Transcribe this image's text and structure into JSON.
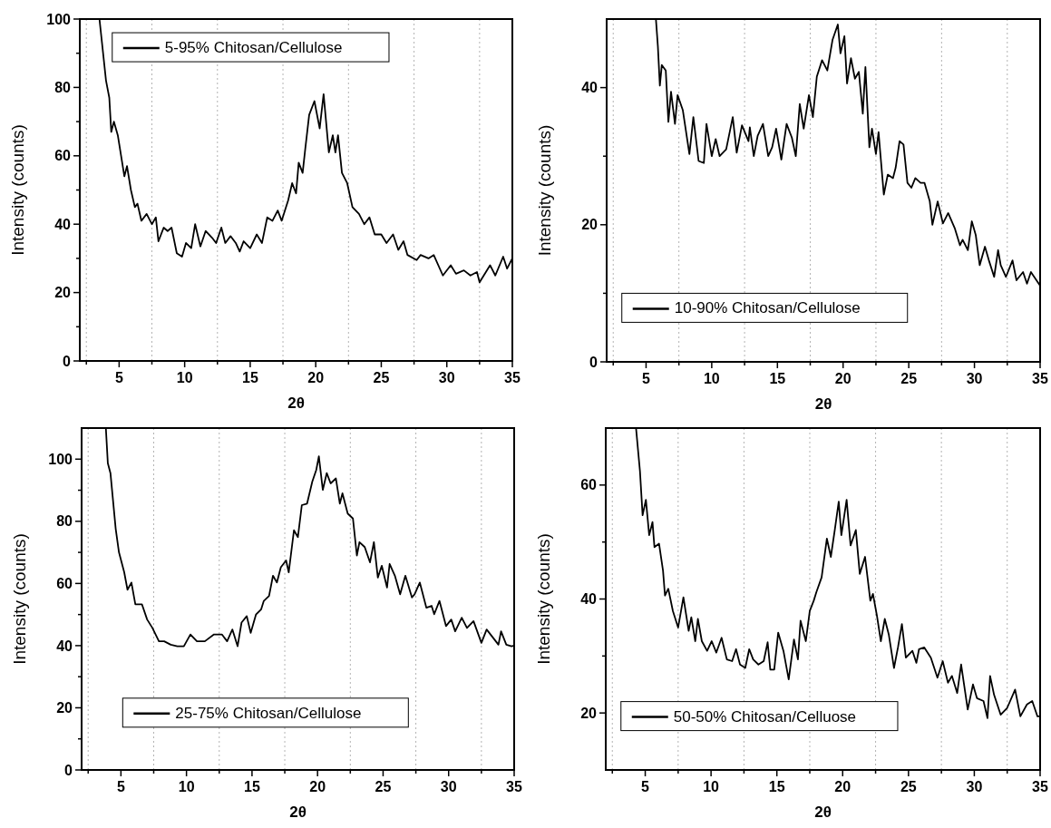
{
  "chart_data": [
    {
      "type": "line",
      "xlabel": "2θ",
      "ylabel": "Intensity (counts)",
      "xlim": [
        2,
        35
      ],
      "ylim": [
        0,
        100
      ],
      "legend": "top left",
      "xticks": [
        {
          "value": 2.5,
          "label": null
        },
        5,
        {
          "value": 7.5,
          "label": null
        },
        10,
        {
          "value": 12.5,
          "label": null
        },
        15,
        {
          "value": 17.5,
          "label": null
        },
        20,
        {
          "value": 22.5,
          "label": null
        },
        25,
        {
          "value": 27.5,
          "label": null
        },
        30,
        {
          "value": 32.5,
          "label": null
        },
        35
      ],
      "yticks": [
        0,
        {
          "value": 10,
          "label": null
        },
        20,
        {
          "value": 30,
          "label": null
        },
        40,
        {
          "value": 50,
          "label": null
        },
        60,
        {
          "value": 70,
          "label": null
        },
        80,
        {
          "value": 90,
          "label": null
        },
        100
      ],
      "ref_lines": [
        {
          "axis": "x",
          "value": 2.5,
          "color": "#808080",
          "line_style": "dotted"
        },
        {
          "axis": "x",
          "value": 7.5,
          "color": "#808080",
          "line_style": "dotted"
        },
        {
          "axis": "x",
          "value": 12.5,
          "color": "#808080",
          "line_style": "dotted"
        },
        {
          "axis": "x",
          "value": 17.5,
          "color": "#808080",
          "line_style": "dotted"
        },
        {
          "axis": "x",
          "value": 22.5,
          "color": "#808080",
          "line_style": "dotted"
        },
        {
          "axis": "x",
          "value": 27.5,
          "color": "#808080",
          "line_style": "dotted"
        },
        {
          "axis": "x",
          "value": 32.5,
          "color": "#808080",
          "line_style": "dotted"
        }
      ],
      "series": [
        {
          "name": "5-95% Chitosan/Cellulose",
          "color": "#000000",
          "x": [
            3.5,
            4.0,
            4.25,
            4.4,
            4.6,
            4.9,
            5.4,
            5.6,
            5.9,
            6.2,
            6.4,
            6.7,
            7.1,
            7.5,
            7.8,
            8.0,
            8.4,
            8.7,
            9.0,
            9.4,
            9.8,
            10.1,
            10.5,
            10.8,
            11.2,
            11.6,
            12.1,
            12.4,
            12.8,
            13.1,
            13.5,
            13.9,
            14.2,
            14.5,
            15.0,
            15.5,
            15.9,
            16.3,
            16.7,
            17.1,
            17.4,
            17.9,
            18.2,
            18.5,
            18.7,
            19.0,
            19.2,
            19.5,
            19.9,
            20.3,
            20.6,
            21.0,
            21.3,
            21.5,
            21.7,
            22.0,
            22.4,
            22.8,
            23.3,
            23.7,
            24.1,
            24.5,
            25.0,
            25.4,
            25.9,
            26.3,
            26.7,
            27.0,
            27.7,
            28.0,
            28.6,
            29.0,
            29.7,
            30.3,
            30.7,
            31.3,
            31.8,
            32.3,
            32.5,
            33.3,
            33.7,
            34.3,
            34.6,
            35
          ],
          "values": [
            100,
            82,
            77,
            67,
            70,
            66,
            54,
            57,
            50,
            45,
            46,
            41,
            43,
            40,
            42,
            35,
            39,
            38,
            39,
            31.5,
            30.5,
            34.5,
            33,
            40,
            33.5,
            38,
            36,
            34.5,
            39,
            34.5,
            36.5,
            34.5,
            32,
            35,
            33,
            37,
            34.5,
            42,
            41,
            44,
            41,
            47,
            52,
            49,
            58,
            55,
            62,
            72,
            76,
            68,
            78,
            61,
            66,
            61,
            66,
            55,
            52,
            45,
            43,
            40,
            42,
            37,
            37,
            34.5,
            37,
            32.5,
            35,
            31,
            29.5,
            31,
            30,
            31,
            25,
            28,
            25.5,
            26.5,
            25,
            26,
            23,
            28,
            25,
            30.5,
            27,
            30
          ]
        }
      ]
    },
    {
      "type": "line",
      "xlabel": "2θ",
      "ylabel": "Intensity (counts)",
      "xlim": [
        2,
        35
      ],
      "ylim": [
        0,
        50
      ],
      "legend": "bottom left",
      "xticks": [
        {
          "value": 2.5,
          "label": null
        },
        5,
        {
          "value": 7.5,
          "label": null
        },
        10,
        {
          "value": 12.5,
          "label": null
        },
        15,
        {
          "value": 17.5,
          "label": null
        },
        20,
        {
          "value": 22.5,
          "label": null
        },
        25,
        {
          "value": 27.5,
          "label": null
        },
        30,
        {
          "value": 32.5,
          "label": null
        },
        35
      ],
      "yticks": [
        0,
        {
          "value": 10,
          "label": null
        },
        20,
        {
          "value": 30,
          "label": null
        },
        40
      ],
      "ref_lines": [
        {
          "axis": "x",
          "value": 2.5,
          "color": "#808080",
          "line_style": "dotted"
        },
        {
          "axis": "x",
          "value": 7.5,
          "color": "#808080",
          "line_style": "dotted"
        },
        {
          "axis": "x",
          "value": 12.5,
          "color": "#808080",
          "line_style": "dotted"
        },
        {
          "axis": "x",
          "value": 17.5,
          "color": "#808080",
          "line_style": "dotted"
        },
        {
          "axis": "x",
          "value": 22.5,
          "color": "#808080",
          "line_style": "dotted"
        },
        {
          "axis": "x",
          "value": 27.5,
          "color": "#808080",
          "line_style": "dotted"
        },
        {
          "axis": "x",
          "value": 32.5,
          "color": "#808080",
          "line_style": "dotted"
        }
      ],
      "series": [
        {
          "name": "10-90% Chitosan/Cellulose",
          "color": "#000000",
          "x": [
            5.75,
            5.9,
            6.05,
            6.2,
            6.5,
            6.7,
            6.9,
            7.2,
            7.4,
            7.8,
            8.3,
            8.6,
            9.0,
            9.4,
            9.6,
            10.0,
            10.3,
            10.6,
            11.1,
            11.6,
            11.9,
            12.3,
            12.8,
            12.9,
            13.2,
            13.5,
            13.9,
            14.3,
            14.6,
            14.9,
            15.3,
            15.7,
            16.1,
            16.4,
            16.7,
            17.0,
            17.4,
            17.7,
            18.0,
            18.4,
            18.8,
            19.2,
            19.6,
            19.8,
            20.1,
            20.3,
            20.6,
            20.9,
            21.2,
            21.5,
            21.7,
            22.0,
            22.2,
            22.5,
            22.7,
            23.1,
            23.4,
            23.8,
            24.0,
            24.3,
            24.6,
            24.9,
            25.2,
            25.5,
            25.9,
            26.2,
            26.6,
            26.8,
            27.2,
            27.6,
            28.0,
            28.5,
            28.9,
            29.1,
            29.5,
            29.8,
            30.1,
            30.4,
            30.8,
            31.1,
            31.5,
            31.8,
            32.0,
            32.4,
            32.9,
            33.2,
            33.7,
            34.0,
            34.3,
            35
          ],
          "values": [
            50,
            46,
            40.3,
            43.3,
            42.5,
            35,
            39.4,
            34.7,
            38.9,
            36.7,
            30.3,
            35.7,
            29.3,
            29,
            34.7,
            30,
            32.5,
            30,
            31,
            35.7,
            30.5,
            34.5,
            32.2,
            34.2,
            30,
            33,
            34.7,
            30,
            31.3,
            34,
            29.5,
            34.7,
            32.7,
            30,
            37.6,
            34,
            38.9,
            35.7,
            41.6,
            44,
            42.5,
            47,
            49.2,
            45,
            47.5,
            40.6,
            44.3,
            41.3,
            42.3,
            36.2,
            43,
            31.3,
            34,
            30.3,
            33.5,
            24.4,
            27.3,
            26.8,
            28.3,
            32.2,
            31.7,
            26.1,
            25.4,
            26.8,
            26.1,
            26.1,
            23.4,
            20,
            23.4,
            20.2,
            21.7,
            19.5,
            17,
            17.8,
            16.3,
            20.5,
            18.5,
            14.1,
            16.8,
            14.8,
            12.4,
            16.3,
            14.1,
            12.4,
            14.8,
            11.9,
            13.1,
            11.4,
            13.1,
            11.1
          ]
        }
      ]
    },
    {
      "type": "line",
      "xlabel": "2θ",
      "ylabel": "Intensity (counts)",
      "xlim": [
        2,
        35
      ],
      "ylim": [
        0,
        110
      ],
      "legend": "bottom",
      "xticks": [
        {
          "value": 2.5,
          "label": null
        },
        5,
        {
          "value": 7.5,
          "label": null
        },
        10,
        {
          "value": 12.5,
          "label": null
        },
        15,
        {
          "value": 17.5,
          "label": null
        },
        20,
        {
          "value": 22.5,
          "label": null
        },
        25,
        {
          "value": 27.5,
          "label": null
        },
        30,
        {
          "value": 32.5,
          "label": null
        },
        35
      ],
      "yticks": [
        0,
        {
          "value": 10,
          "label": null
        },
        20,
        {
          "value": 30,
          "label": null
        },
        40,
        {
          "value": 50,
          "label": null
        },
        60,
        {
          "value": 70,
          "label": null
        },
        80,
        {
          "value": 90,
          "label": null
        },
        100
      ],
      "ref_lines": [
        {
          "axis": "x",
          "value": 2.5,
          "color": "#808080",
          "line_style": "dotted"
        },
        {
          "axis": "x",
          "value": 7.5,
          "color": "#808080",
          "line_style": "dotted"
        },
        {
          "axis": "x",
          "value": 12.5,
          "color": "#808080",
          "line_style": "dotted"
        },
        {
          "axis": "x",
          "value": 17.5,
          "color": "#808080",
          "line_style": "dotted"
        },
        {
          "axis": "x",
          "value": 22.5,
          "color": "#808080",
          "line_style": "dotted"
        },
        {
          "axis": "x",
          "value": 27.5,
          "color": "#808080",
          "line_style": "dotted"
        },
        {
          "axis": "x",
          "value": 32.5,
          "color": "#808080",
          "line_style": "dotted"
        }
      ],
      "series": [
        {
          "name": "25-75% Chitosan/Cellulose",
          "color": "#000000",
          "x": [
            3.85,
            4.0,
            4.2,
            4.6,
            4.85,
            5.25,
            5.5,
            5.8,
            6.1,
            6.6,
            7.0,
            7.4,
            7.9,
            8.3,
            8.8,
            9.3,
            9.8,
            10.3,
            10.8,
            11.4,
            12.1,
            12.7,
            13.1,
            13.5,
            13.9,
            14.2,
            14.6,
            14.9,
            15.3,
            15.7,
            15.9,
            16.3,
            16.6,
            16.9,
            17.2,
            17.6,
            17.8,
            18.2,
            18.5,
            18.8,
            19.2,
            19.6,
            19.9,
            20.1,
            20.4,
            20.7,
            21.0,
            21.4,
            21.7,
            21.9,
            22.3,
            22.7,
            23.0,
            23.2,
            23.6,
            24.0,
            24.3,
            24.6,
            24.9,
            25.3,
            25.5,
            25.9,
            26.3,
            26.7,
            27.2,
            27.4,
            27.8,
            28.3,
            28.7,
            28.9,
            29.3,
            29.8,
            30.2,
            30.5,
            31.0,
            31.4,
            31.9,
            32.5,
            32.9,
            33.4,
            33.8,
            34.0,
            34.4,
            34.8,
            35
          ],
          "values": [
            110,
            98.7,
            95.5,
            77.6,
            70,
            63.6,
            58,
            60.3,
            53.3,
            53.3,
            48.4,
            45.7,
            41.4,
            41.4,
            40.3,
            39.8,
            39.8,
            43.6,
            41.4,
            41.4,
            43.6,
            43.6,
            41.4,
            45.2,
            39.8,
            47.4,
            49.5,
            44.1,
            50,
            51.7,
            54.4,
            56,
            62.5,
            60.3,
            65.2,
            67.4,
            63.6,
            77.1,
            74.9,
            85.2,
            85.7,
            92.8,
            96.5,
            100.9,
            90.1,
            95.5,
            92.2,
            93.8,
            85.7,
            89,
            82.5,
            80.9,
            69,
            73.3,
            71.7,
            66.8,
            73.3,
            61.9,
            65.7,
            58.7,
            66.3,
            62.5,
            56.5,
            62.5,
            55.5,
            56.5,
            60.3,
            52.2,
            52.8,
            50.1,
            54.4,
            46.3,
            48.4,
            44.6,
            49,
            45.7,
            47.9,
            40.9,
            45.2,
            42.5,
            40.3,
            44.6,
            40.3,
            39.8,
            40
          ]
        }
      ]
    },
    {
      "type": "line",
      "xlabel": "2θ",
      "ylabel": "Intensity (counts)",
      "xlim": [
        2,
        35
      ],
      "ylim": [
        10,
        70
      ],
      "legend": "bottom left",
      "xticks": [
        {
          "value": 2.5,
          "label": null
        },
        5,
        {
          "value": 7.5,
          "label": null
        },
        10,
        {
          "value": 12.5,
          "label": null
        },
        15,
        {
          "value": 17.5,
          "label": null
        },
        20,
        {
          "value": 22.5,
          "label": null
        },
        25,
        {
          "value": 27.5,
          "label": null
        },
        30,
        {
          "value": 32.5,
          "label": null
        },
        35
      ],
      "yticks": [
        20,
        {
          "value": 30,
          "label": null
        },
        40,
        {
          "value": 50,
          "label": null
        },
        60
      ],
      "ref_lines": [
        {
          "axis": "x",
          "value": 2.5,
          "color": "#808080",
          "line_style": "dotted"
        },
        {
          "axis": "x",
          "value": 7.5,
          "color": "#808080",
          "line_style": "dotted"
        },
        {
          "axis": "x",
          "value": 12.5,
          "color": "#808080",
          "line_style": "dotted"
        },
        {
          "axis": "x",
          "value": 17.5,
          "color": "#808080",
          "line_style": "dotted"
        },
        {
          "axis": "x",
          "value": 22.5,
          "color": "#808080",
          "line_style": "dotted"
        },
        {
          "axis": "x",
          "value": 27.5,
          "color": "#808080",
          "line_style": "dotted"
        },
        {
          "axis": "x",
          "value": 32.5,
          "color": "#808080",
          "line_style": "dotted"
        }
      ],
      "series": [
        {
          "name": "50-50% Chitosan/Celluose",
          "color": "#000000",
          "x": [
            4.3,
            4.6,
            4.8,
            5.05,
            5.3,
            5.55,
            5.7,
            6.05,
            6.35,
            6.5,
            6.75,
            7.1,
            7.5,
            7.9,
            8.3,
            8.5,
            8.8,
            9.0,
            9.3,
            9.7,
            10.05,
            10.4,
            10.8,
            11.2,
            11.6,
            11.9,
            12.2,
            12.6,
            12.9,
            13.2,
            13.6,
            14.0,
            14.3,
            14.5,
            14.8,
            15.1,
            15.5,
            15.9,
            16.3,
            16.6,
            16.8,
            17.2,
            17.5,
            17.8,
            18.0,
            18.4,
            18.8,
            19.1,
            19.4,
            19.7,
            19.9,
            20.3,
            20.6,
            21.0,
            21.3,
            21.7,
            22.1,
            22.3,
            22.6,
            22.9,
            23.2,
            23.5,
            23.9,
            24.2,
            24.5,
            24.8,
            25.3,
            25.6,
            25.8,
            26.2,
            26.7,
            27.2,
            27.6,
            28.0,
            28.3,
            28.7,
            29.0,
            29.5,
            29.9,
            30.2,
            30.7,
            31.0,
            31.2,
            31.5,
            32.0,
            32.5,
            33.1,
            33.5,
            34.0,
            34.4,
            34.8,
            35
          ],
          "values": [
            70,
            62.4,
            54.7,
            57.4,
            51.2,
            53.5,
            49.1,
            49.7,
            45,
            40.6,
            41.8,
            37.9,
            35,
            40.3,
            34.4,
            36.8,
            32.6,
            36.5,
            32.6,
            30.9,
            32.6,
            30.6,
            33.2,
            29.4,
            29.1,
            31.2,
            28.5,
            27.9,
            31.2,
            29.4,
            28.5,
            29.1,
            32.4,
            27.6,
            27.6,
            34.1,
            30.9,
            25.9,
            32.9,
            29.4,
            36.2,
            32.6,
            37.9,
            39.7,
            41.2,
            43.8,
            50.6,
            47.4,
            52.1,
            57.1,
            51.2,
            57.4,
            49.4,
            52.1,
            44.4,
            47.4,
            39.7,
            40.9,
            37.1,
            32.6,
            36.5,
            33.8,
            27.9,
            31.5,
            35.6,
            29.7,
            30.9,
            28.8,
            31.2,
            31.5,
            29.7,
            26.2,
            29.1,
            25.3,
            26.5,
            23.5,
            28.5,
            20.6,
            25,
            22.6,
            22.1,
            19.1,
            26.5,
            23.2,
            19.7,
            20.9,
            24.1,
            19.4,
            21.5,
            22.1,
            19.4,
            19.4
          ]
        }
      ]
    }
  ]
}
